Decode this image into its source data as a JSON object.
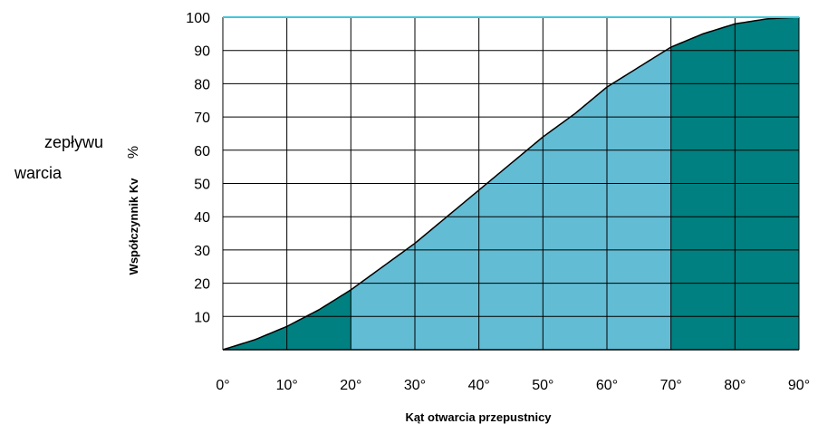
{
  "side_text": [
    "zepływu",
    "warcia"
  ],
  "chart_data": {
    "type": "area",
    "title": "",
    "xlabel": "Kąt otwarcia przepustnicy",
    "ylabel": "Współczynnik Kv",
    "ylabel_unit": "%",
    "xlim": [
      0,
      90
    ],
    "ylim": [
      0,
      100
    ],
    "x_ticks": [
      0,
      10,
      20,
      30,
      40,
      50,
      60,
      70,
      80,
      90
    ],
    "x_tick_labels": [
      "0°",
      "10°",
      "20°",
      "30°",
      "40°",
      "50°",
      "60°",
      "70°",
      "80°",
      "90°"
    ],
    "y_ticks": [
      10,
      20,
      30,
      40,
      50,
      60,
      70,
      80,
      90,
      100
    ],
    "y_tick_labels": [
      "10",
      "20",
      "30",
      "40",
      "50",
      "60",
      "70",
      "80",
      "90",
      "100"
    ],
    "grid": true,
    "x": [
      0,
      5,
      10,
      15,
      20,
      25,
      30,
      35,
      40,
      45,
      50,
      55,
      60,
      65,
      70,
      75,
      80,
      85,
      90
    ],
    "y": [
      0,
      3,
      7,
      12,
      18,
      25,
      32,
      40,
      48,
      56,
      64,
      71,
      79,
      85,
      91,
      95,
      98,
      99.5,
      100
    ],
    "regions": [
      {
        "from": 0,
        "to": 20,
        "color": "#008080"
      },
      {
        "from": 20,
        "to": 70,
        "color": "#62bcd4"
      },
      {
        "from": 70,
        "to": 90,
        "color": "#008080"
      }
    ],
    "top_line_color": "#40c8d8"
  }
}
